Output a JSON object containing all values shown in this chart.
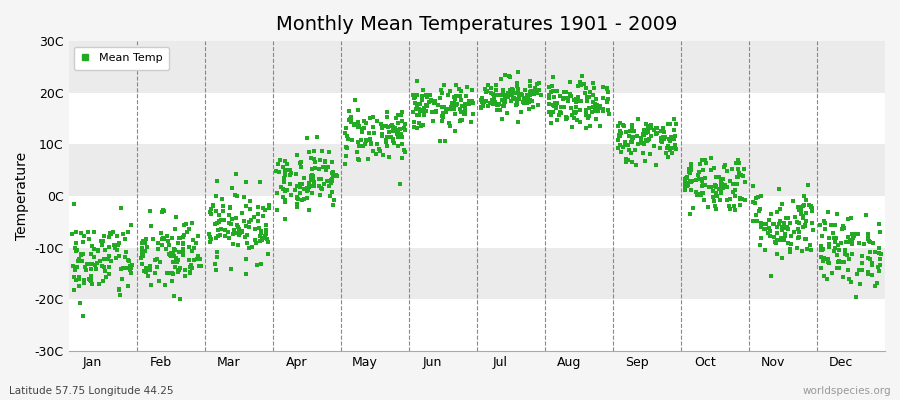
{
  "title": "Monthly Mean Temperatures 1901 - 2009",
  "ylabel": "Temperature",
  "xlabel_labels": [
    "Jan",
    "Feb",
    "Mar",
    "Apr",
    "May",
    "Jun",
    "Jul",
    "Aug",
    "Sep",
    "Oct",
    "Nov",
    "Dec"
  ],
  "subtitle": "Latitude 57.75 Longitude 44.25",
  "watermark": "worldspecies.org",
  "ylim": [
    -30,
    30
  ],
  "yticks": [
    -30,
    -20,
    -10,
    0,
    10,
    20,
    30
  ],
  "ytick_labels": [
    "-30C",
    "-20C",
    "-10C",
    "0C",
    "10C",
    "20C",
    "30C"
  ],
  "dot_color": "#22aa22",
  "bg_color": "#f5f5f5",
  "legend_label": "Mean Temp",
  "monthly_means": [
    -12.5,
    -11.5,
    -5.5,
    3.5,
    12.0,
    17.0,
    19.5,
    17.5,
    11.0,
    2.5,
    -5.5,
    -10.5
  ],
  "monthly_stds": [
    4.0,
    4.0,
    3.5,
    3.0,
    2.8,
    2.2,
    1.8,
    2.2,
    2.2,
    2.8,
    3.5,
    3.5
  ],
  "n_years": 109,
  "marker_size": 5,
  "dpi": 100,
  "figsize": [
    9.0,
    4.0
  ]
}
